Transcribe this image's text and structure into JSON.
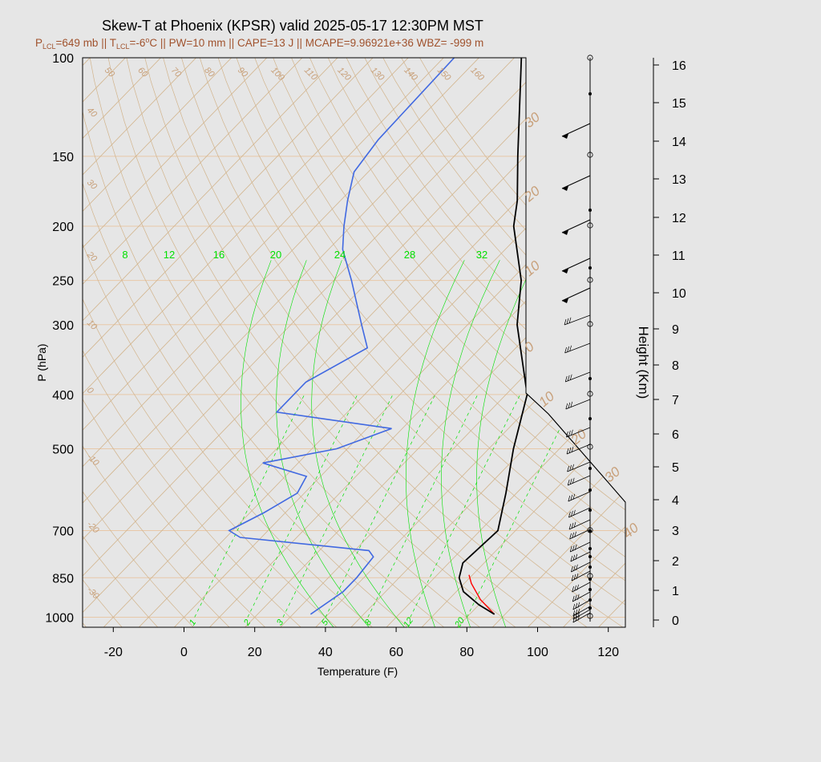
{
  "header": {
    "title": "Skew-T at Phoenix (KPSR) valid 2025-05-17 12:30PM MST",
    "subtitle": {
      "p_lcl_label": "P",
      "p_lcl_sub": "LCL",
      "p_lcl_value": "=649 mb || ",
      "t_lcl_label": "T",
      "t_lcl_sub": "LCL",
      "t_lcl_value": "=-6",
      "t_lcl_deg": "o",
      "rest": "C || PW=10 mm || CAPE=13 J || MCAPE=9.96921e+36 WBZ= -999 m"
    }
  },
  "colors": {
    "background": "#e6e6e6",
    "plot_bg": "#e6e6e6",
    "temperature": "#000000",
    "dewpoint": "#4169e1",
    "parcel": "#ff0000",
    "isotherm": "#d2b48c",
    "mixing_ratio": "#00e000",
    "isobar": "#e8c8a8",
    "label_tan": "#c8a07a"
  },
  "chart_data": {
    "type": "skew-t",
    "xlabel": "Temperature (F)",
    "ylabel": "P (hPa)",
    "right_label": "Height (Km)",
    "x_ticks": [
      "-20",
      "0",
      "20",
      "40",
      "60",
      "80",
      "100",
      "120"
    ],
    "p_ticks": [
      "100",
      "150",
      "200",
      "250",
      "300",
      "400",
      "500",
      "700",
      "850",
      "1000"
    ],
    "height_ticks": [
      "0",
      "1",
      "2",
      "3",
      "4",
      "5",
      "6",
      "7",
      "8",
      "9",
      "10",
      "11",
      "12",
      "13",
      "14",
      "15",
      "16"
    ],
    "isotherm_top_labels": [
      "50",
      "60",
      "70",
      "80",
      "90",
      "100",
      "110",
      "120",
      "130",
      "140",
      "150",
      "160"
    ],
    "isotherm_left_labels": [
      "40",
      "30",
      "20",
      "10",
      "0",
      "-10",
      "-20",
      "-30"
    ],
    "isotherm_right_labels": [
      "30",
      "20",
      "10",
      "0",
      "10",
      "20",
      "30",
      "40"
    ],
    "mixing_ratio_top_labels": [
      "8",
      "12",
      "16",
      "20",
      "24",
      "28",
      "32"
    ],
    "mixing_ratio_bottom_labels": [
      "1",
      "2",
      "3",
      "5",
      "8",
      "12",
      "20"
    ],
    "temperature_profile": [
      {
        "p": 988,
        "t": 87
      },
      {
        "p": 950,
        "t": 80
      },
      {
        "p": 900,
        "t": 72
      },
      {
        "p": 850,
        "t": 67
      },
      {
        "p": 800,
        "t": 64
      },
      {
        "p": 700,
        "t": 65
      },
      {
        "p": 600,
        "t": 57
      },
      {
        "p": 500,
        "t": 47
      },
      {
        "p": 400,
        "t": 36
      },
      {
        "p": 300,
        "t": 14
      },
      {
        "p": 250,
        "t": 3
      },
      {
        "p": 200,
        "t": -14
      },
      {
        "p": 180,
        "t": -20
      },
      {
        "p": 150,
        "t": -32
      },
      {
        "p": 100,
        "t": -58
      }
    ],
    "dewpoint_profile": [
      {
        "p": 988,
        "t": 35
      },
      {
        "p": 900,
        "t": 38
      },
      {
        "p": 850,
        "t": 38
      },
      {
        "p": 780,
        "t": 37
      },
      {
        "p": 760,
        "t": 34
      },
      {
        "p": 720,
        "t": -6
      },
      {
        "p": 700,
        "t": -11
      },
      {
        "p": 650,
        "t": -6
      },
      {
        "p": 600,
        "t": -2
      },
      {
        "p": 560,
        "t": -4
      },
      {
        "p": 530,
        "t": -20
      },
      {
        "p": 500,
        "t": -3
      },
      {
        "p": 460,
        "t": 7
      },
      {
        "p": 430,
        "t": -30
      },
      {
        "p": 380,
        "t": -30
      },
      {
        "p": 330,
        "t": -22
      },
      {
        "p": 300,
        "t": -30
      },
      {
        "p": 250,
        "t": -45
      },
      {
        "p": 220,
        "t": -56
      },
      {
        "p": 200,
        "t": -62
      },
      {
        "p": 180,
        "t": -68
      },
      {
        "p": 160,
        "t": -74
      },
      {
        "p": 140,
        "t": -76
      },
      {
        "p": 100,
        "t": -77
      }
    ],
    "parcel_profile": [
      {
        "p": 988,
        "t": 87
      },
      {
        "p": 930,
        "t": 79
      },
      {
        "p": 870,
        "t": 72
      },
      {
        "p": 840,
        "t": 69
      }
    ],
    "grid": true
  }
}
